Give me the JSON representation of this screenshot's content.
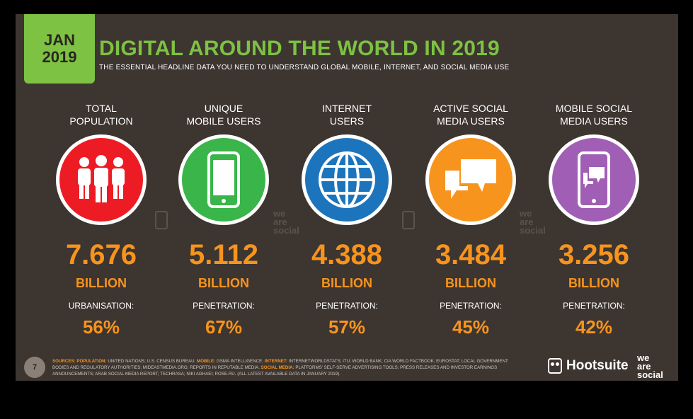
{
  "header": {
    "date_month": "JAN",
    "date_year": "2019",
    "title": "DIGITAL AROUND THE WORLD IN 2019",
    "subtitle": "THE ESSENTIAL HEADLINE DATA YOU NEED TO UNDERSTAND GLOBAL MOBILE, INTERNET, AND SOCIAL MEDIA USE"
  },
  "stats": [
    {
      "label1": "TOTAL",
      "label2": "POPULATION",
      "value": "7.676",
      "unit": "BILLION",
      "sublabel": "URBANISATION:",
      "pct": "56%",
      "color": "#ed1c24",
      "icon": "people-icon"
    },
    {
      "label1": "UNIQUE",
      "label2": "MOBILE USERS",
      "value": "5.112",
      "unit": "BILLION",
      "sublabel": "PENETRATION:",
      "pct": "67%",
      "color": "#39b54a",
      "icon": "mobile-phone-icon"
    },
    {
      "label1": "INTERNET",
      "label2": "USERS",
      "value": "4.388",
      "unit": "BILLION",
      "sublabel": "PENETRATION:",
      "pct": "57%",
      "color": "#1c75bc",
      "icon": "globe-icon"
    },
    {
      "label1": "ACTIVE SOCIAL",
      "label2": "MEDIA USERS",
      "value": "3.484",
      "unit": "BILLION",
      "sublabel": "PENETRATION:",
      "pct": "45%",
      "color": "#f7941d",
      "icon": "speech-bubbles-icon"
    },
    {
      "label1": "MOBILE SOCIAL",
      "label2": "MEDIA USERS",
      "value": "3.256",
      "unit": "BILLION",
      "sublabel": "PENETRATION:",
      "pct": "42%",
      "color": "#a05fb4",
      "icon": "mobile-chat-icon"
    }
  ],
  "watermark": {
    "line1": "we",
    "line2": "are",
    "line3": "social"
  },
  "footer": {
    "page_number": "7",
    "sources_label": "SOURCES:",
    "population_label": "POPULATION:",
    "population_src": "UNITED NATIONS; U.S. CENSUS BUREAU.",
    "mobile_label": "MOBILE:",
    "mobile_src": "GSMA INTELLIGENCE.",
    "internet_label": "INTERNET:",
    "internet_src": "INTERNETWORLDSTATS; ITU; WORLD BANK; CIA WORLD FACTBOOK; EUROSTAT; LOCAL GOVERNMENT BODIES AND REGULATORY AUTHORITIES; MIDEASTMEDIA.ORG; REPORTS IN REPUTABLE MEDIA.",
    "social_label": "SOCIAL MEDIA:",
    "social_src": "PLATFORMS' SELF-SERVE ADVERTISING TOOLS; PRESS RELEASES AND INVESTOR EARNINGS ANNOUNCEMENTS; ARAB SOCIAL MEDIA REPORT; TECHRASA; NIKI AGHAEI; ROSE.RU. (ALL LATEST AVAILABLE DATA IN JANUARY 2019).",
    "brand": "Hootsuite",
    "brand2_line1": "we",
    "brand2_line2": "are",
    "brand2_line3": "social"
  }
}
